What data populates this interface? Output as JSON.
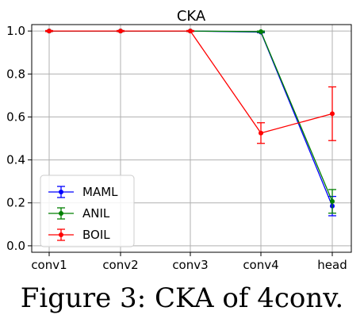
{
  "caption": "Figure 3: CKA of 4conv.",
  "chart_data": {
    "type": "line",
    "title": "CKA",
    "xlabel": "",
    "ylabel": "",
    "categories": [
      "conv1",
      "conv2",
      "conv3",
      "conv4",
      "head"
    ],
    "ylim": [
      -0.03,
      1.03
    ],
    "yticks": [
      0.0,
      0.2,
      0.4,
      0.6,
      0.8,
      1.0
    ],
    "ytick_labels": [
      "0.0",
      "0.2",
      "0.4",
      "0.6",
      "0.8",
      "1.0"
    ],
    "grid": true,
    "legend_position": "lower-left",
    "series": [
      {
        "name": "MAML",
        "color": "#0000ff",
        "values": [
          1.0,
          1.0,
          1.0,
          0.995,
          0.185
        ],
        "errors": [
          0.002,
          0.002,
          0.002,
          0.003,
          0.045
        ]
      },
      {
        "name": "ANIL",
        "color": "#008000",
        "values": [
          1.0,
          1.0,
          1.0,
          0.997,
          0.207
        ],
        "errors": [
          0.002,
          0.002,
          0.002,
          0.003,
          0.055
        ]
      },
      {
        "name": "BOIL",
        "color": "#ff0000",
        "values": [
          1.0,
          1.0,
          1.0,
          0.525,
          0.615
        ],
        "errors": [
          0.002,
          0.002,
          0.002,
          0.048,
          0.125
        ]
      }
    ]
  }
}
